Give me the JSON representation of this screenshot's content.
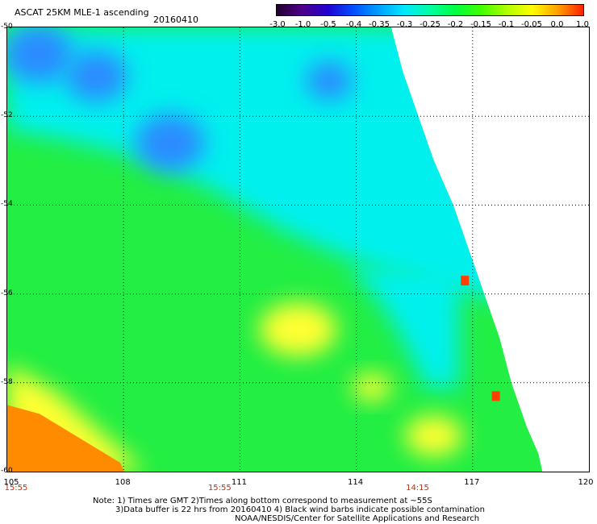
{
  "header": {
    "title": "ASCAT 25KM MLE-1 ascending",
    "date": "20160410"
  },
  "colorbar": {
    "labels": [
      "-3.0",
      "-1.0",
      "-0.5",
      "-0.4",
      "-0.35",
      "-0.3",
      "-0.25",
      "-0.2",
      "-0.15",
      "-0.1",
      "-0.05",
      "0.0",
      "1.0"
    ],
    "colors": [
      "#200030",
      "#50008a",
      "#2000d0",
      "#0050ff",
      "#00a0ff",
      "#00e8ff",
      "#00ffa0",
      "#00ff40",
      "#40ff00",
      "#b0ff00",
      "#ffff00",
      "#ffa000",
      "#ff2000"
    ]
  },
  "map": {
    "lat_labels": [
      "-50",
      "-52",
      "-54",
      "-56",
      "-58",
      "-60"
    ],
    "lon_labels": [
      "105",
      "108",
      "111",
      "114",
      "117",
      "120"
    ],
    "time_labels": [
      "15:55",
      "15:55",
      "14:15"
    ],
    "swath_edge": [
      [
        114.9,
        -50
      ],
      [
        115.2,
        -51
      ],
      [
        115.6,
        -52
      ],
      [
        116.0,
        -53
      ],
      [
        116.5,
        -54
      ],
      [
        116.9,
        -55
      ],
      [
        117.3,
        -56
      ],
      [
        117.7,
        -57
      ],
      [
        118.0,
        -58
      ],
      [
        118.4,
        -59
      ],
      [
        118.7,
        -59.6
      ],
      [
        118.8,
        -60
      ]
    ],
    "colors": {
      "green": "#22ee44",
      "cyan": "#00f0ee",
      "blue": "#2a8cff",
      "yellow": "#ffff30",
      "orange": "#ff8c00",
      "red": "#ff4000"
    },
    "blue_patches": [
      {
        "lon": 105.8,
        "lat": -50.6,
        "r": 0.9
      },
      {
        "lon": 107.3,
        "lat": -51.1,
        "r": 0.8
      },
      {
        "lon": 109.2,
        "lat": -52.6,
        "r": 0.9
      },
      {
        "lon": 113.3,
        "lat": -51.2,
        "r": 0.6
      }
    ],
    "cyan_band_top_lat": -55.4,
    "yellow_patches": [
      {
        "lon": 112.5,
        "lat": -56.8,
        "r": 0.8
      },
      {
        "lon": 116.0,
        "lat": -59.2,
        "r": 0.6
      },
      {
        "lon": 114.4,
        "lat": -58.1,
        "r": 0.4
      }
    ],
    "red_cells": [
      {
        "lon": 116.8,
        "lat": -55.7
      },
      {
        "lon": 117.6,
        "lat": -58.3
      }
    ]
  },
  "notes": [
    "Note: 1) Times are GMT 2)Times along bottom correspond to measurement at ~55S",
    "3)Data buffer is 22 hrs from 20160410 4) Black wind barbs indicate possible contamination",
    "NOAA/NESDIS/Center for Satellite Applications and Research"
  ]
}
